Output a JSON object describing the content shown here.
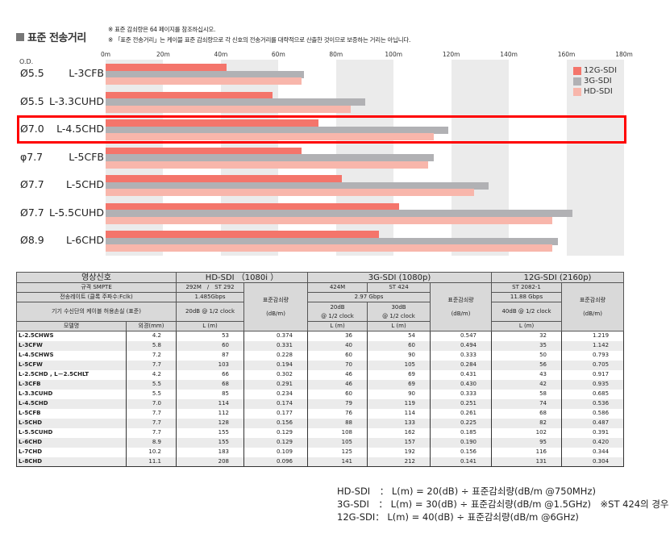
{
  "title": "표준 전송거리",
  "notes": [
    "※ 표준 감쇠량은 64 페이지를 참조하십시오.",
    "※ 「표준 전송거리」는 케이블 표준 감쇠량으로 각 신호의 전송거리를 대략적으로 산출한 것이므로 보증하는 거리는 아닙니다."
  ],
  "chart_data": {
    "type": "bar",
    "orientation": "horizontal",
    "od_header": "O.D.",
    "categories": [
      "L-3CFB",
      "L-3.3CUHD",
      "L-4.5CHD",
      "L-5CFB",
      "L-5CHD",
      "L-5.5CUHD",
      "L-6CHD"
    ],
    "od_labels": [
      "Ø5.5",
      "Ø5.5",
      "Ø7.0",
      "φ7.7",
      "Ø7.7",
      "Ø7.7",
      "Ø8.9"
    ],
    "highlighted": "L-4.5CHD",
    "xlim": [
      0,
      180
    ],
    "ticks": [
      "0m",
      "20m",
      "40m",
      "60m",
      "80m",
      "100m",
      "120m",
      "140m",
      "160m",
      "180m"
    ],
    "tick_values": [
      0,
      20,
      40,
      60,
      80,
      100,
      120,
      140,
      160,
      180
    ],
    "legend_position": "top-right",
    "series": [
      {
        "name": "12G-SDI",
        "color": "#f4756b",
        "values": [
          42,
          58,
          74,
          68,
          82,
          102,
          95
        ]
      },
      {
        "name": "3G-SDI",
        "color": "#b1b1b4",
        "values": [
          69,
          90,
          119,
          114,
          133,
          162,
          157
        ]
      },
      {
        "name": "HD-SDI",
        "color": "#f8b6ab",
        "values": [
          68,
          85,
          114,
          112,
          128,
          155,
          155
        ]
      }
    ],
    "band_color": "#ebebeb"
  },
  "table": {
    "h_signal": "영상신호",
    "h_hd": "HD-SDI （1080i ）",
    "h_3g": "3G-SDI (1080p)",
    "h_12g": "12G-SDI (2160p)",
    "h_smpte": "규격 SMPTE",
    "hd_smpte": "292M　/　ST 292",
    "g3_smpte_a": "424M",
    "g3_smpte_b": "ST 424",
    "g12_smpte": "ST 2082-1",
    "h_rate": "전송레이트 (클록 주파수:Fclk)",
    "hd_rate": "1.485Gbps",
    "g3_rate": "2.97 Gbps",
    "g12_rate": "11.88 Gbps",
    "h_loss": "기기 수신단의 케이블 허용손실 (표준)",
    "hd_loss": "20dB @ 1/2 clock",
    "g3_loss_a1": "20dB",
    "g3_loss_a2": "@ 1/2 clock",
    "g3_loss_b1": "30dB",
    "g3_loss_b2": "@ 1/2 clock",
    "g12_loss": "40dB @ 1/2 clock",
    "att1": "표준감쇠량",
    "att2": "(dB/m)",
    "h_model": "모델명",
    "h_od": "외경(mm)",
    "h_L": "L (m)",
    "rows": [
      [
        "L-2.5CHWS",
        "4.2",
        "53",
        "0.374",
        "36",
        "54",
        "0.547",
        "32",
        "1.219"
      ],
      [
        "L-3CFW",
        "5.8",
        "60",
        "0.331",
        "40",
        "60",
        "0.494",
        "35",
        "1.142"
      ],
      [
        "L-4.5CHWS",
        "7.2",
        "87",
        "0.228",
        "60",
        "90",
        "0.333",
        "50",
        "0.793"
      ],
      [
        "L-5CFW",
        "7.7",
        "103",
        "0.194",
        "70",
        "105",
        "0.284",
        "56",
        "0.705"
      ],
      [
        "L-2.5CHD , L－2.5CHLT",
        "4.2",
        "66",
        "0.302",
        "46",
        "69",
        "0.431",
        "43",
        "0.917"
      ],
      [
        "L-3CFB",
        "5.5",
        "68",
        "0.291",
        "46",
        "69",
        "0.430",
        "42",
        "0.935"
      ],
      [
        "L-3.3CUHD",
        "5.5",
        "85",
        "0.234",
        "60",
        "90",
        "0.333",
        "58",
        "0.685"
      ],
      [
        "L-4.5CHD",
        "7.0",
        "114",
        "0.174",
        "79",
        "119",
        "0.251",
        "74",
        "0.536"
      ],
      [
        "L-5CFB",
        "7.7",
        "112",
        "0.177",
        "76",
        "114",
        "0.261",
        "68",
        "0.586"
      ],
      [
        "L-5CHD",
        "7.7",
        "128",
        "0.156",
        "88",
        "133",
        "0.225",
        "82",
        "0.487"
      ],
      [
        "L-5.5CUHD",
        "7.7",
        "155",
        "0.129",
        "108",
        "162",
        "0.185",
        "102",
        "0.391"
      ],
      [
        "L-6CHD",
        "8.9",
        "155",
        "0.129",
        "105",
        "157",
        "0.190",
        "95",
        "0.420"
      ],
      [
        "L-7CHD",
        "10.2",
        "183",
        "0.109",
        "125",
        "192",
        "0.156",
        "116",
        "0.344"
      ],
      [
        "L-8CHD",
        "11.1",
        "208",
        "0.096",
        "141",
        "212",
        "0.141",
        "131",
        "0.304"
      ]
    ]
  },
  "formulas": [
    "HD-SDI　：  L(m) = 20(dB) ÷ 표준감쇠량(dB/m @750MHz)",
    "3G-SDI　：  L(m) = 30(dB) ÷ 표준감쇠량(dB/m @1.5GHz)　※ST 424의 경우",
    "12G-SDI：  L(m) = 40(dB) ÷ 표준감쇠량(dB/m @6GHz)"
  ]
}
